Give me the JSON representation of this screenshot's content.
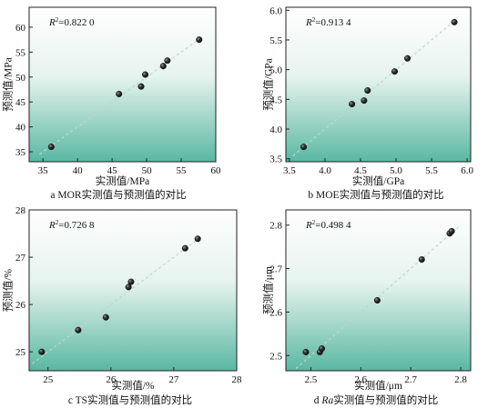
{
  "chart_data": [
    {
      "type": "scatter",
      "caption": "a MOR实测值与预测值的对比",
      "xlabel": "实测值/MPa",
      "ylabel": "预测值/MPa",
      "r2_label": "R",
      "r2_value": "=0.822 0",
      "xlim": [
        33,
        60
      ],
      "ylim": [
        33,
        64
      ],
      "xticks": [
        35,
        40,
        45,
        50,
        55,
        60
      ],
      "yticks": [
        35,
        40,
        45,
        50,
        55,
        60
      ],
      "points": [
        {
          "x": 36.2,
          "y": 36.0
        },
        {
          "x": 46.0,
          "y": 46.6
        },
        {
          "x": 49.2,
          "y": 48.1
        },
        {
          "x": 49.8,
          "y": 50.5
        },
        {
          "x": 52.4,
          "y": 52.2
        },
        {
          "x": 53.0,
          "y": 53.3
        },
        {
          "x": 57.6,
          "y": 57.5
        }
      ],
      "fit_line": [
        [
          34.5,
          34.5
        ],
        [
          57.5,
          57.5
        ]
      ],
      "grid": false
    },
    {
      "type": "scatter",
      "caption": "b MOE实测值与预测值的对比",
      "xlabel": "实测值/GPa",
      "ylabel": "预测值/GPa",
      "r2_label": "R",
      "r2_value": "=0.913 4",
      "xlim": [
        3.45,
        6.05
      ],
      "ylim": [
        3.45,
        6.05
      ],
      "xticks": [
        3.5,
        4.0,
        4.5,
        5.0,
        5.5,
        6.0
      ],
      "yticks": [
        3.5,
        4.0,
        4.5,
        5.0,
        5.5,
        6.0
      ],
      "xtick_labels": [
        "3.5",
        "4.0",
        "4.5",
        "5.0",
        "5.5",
        "6.0"
      ],
      "ytick_labels": [
        "3.5",
        "4.0",
        "4.5",
        "5.0",
        "5.5",
        "6.0"
      ],
      "points": [
        {
          "x": 3.7,
          "y": 3.7
        },
        {
          "x": 4.38,
          "y": 4.42
        },
        {
          "x": 4.55,
          "y": 4.48
        },
        {
          "x": 4.6,
          "y": 4.65
        },
        {
          "x": 4.98,
          "y": 4.97
        },
        {
          "x": 5.16,
          "y": 5.19
        },
        {
          "x": 5.82,
          "y": 5.8
        }
      ],
      "fit_line": [
        [
          3.55,
          3.55
        ],
        [
          5.8,
          5.8
        ]
      ],
      "grid": false
    },
    {
      "type": "scatter",
      "caption": "c TS实测值与预测值的对比",
      "xlabel": "实测值/%",
      "ylabel": "预测值/%",
      "r2_label": "R",
      "r2_value": "=0.726 8",
      "xlim": [
        24.7,
        28.0
      ],
      "ylim": [
        24.6,
        28.0
      ],
      "xticks": [
        25,
        26,
        27,
        28
      ],
      "yticks": [
        25,
        26,
        27,
        28
      ],
      "points": [
        {
          "x": 24.9,
          "y": 25.0
        },
        {
          "x": 25.48,
          "y": 25.46
        },
        {
          "x": 25.92,
          "y": 25.73
        },
        {
          "x": 26.28,
          "y": 26.37
        },
        {
          "x": 26.32,
          "y": 26.48
        },
        {
          "x": 27.18,
          "y": 27.19
        },
        {
          "x": 27.38,
          "y": 27.39
        }
      ],
      "fit_line": [
        [
          24.75,
          24.75
        ],
        [
          27.4,
          27.4
        ]
      ],
      "grid": false
    },
    {
      "type": "scatter",
      "caption_prefix": "d ",
      "caption_italic": "Ra",
      "caption_suffix": "实测值与预测值的对比",
      "xlabel": "实测值/μm",
      "ylabel": "预测值/μm",
      "r2_label": "R",
      "r2_value": "=0.498 4",
      "xlim": [
        2.45,
        2.82
      ],
      "ylim": [
        2.465,
        2.835
      ],
      "xticks": [
        2.5,
        2.6,
        2.7,
        2.8
      ],
      "yticks": [
        2.5,
        2.6,
        2.7,
        2.8
      ],
      "points": [
        {
          "x": 2.49,
          "y": 2.508
        },
        {
          "x": 2.518,
          "y": 2.508
        },
        {
          "x": 2.522,
          "y": 2.516
        },
        {
          "x": 2.633,
          "y": 2.627
        },
        {
          "x": 2.722,
          "y": 2.721
        },
        {
          "x": 2.778,
          "y": 2.781
        },
        {
          "x": 2.782,
          "y": 2.786
        }
      ],
      "fit_line": [
        [
          2.47,
          2.47
        ],
        [
          2.8,
          2.8
        ]
      ],
      "grid": false
    }
  ],
  "style": {
    "gradient_top": "#ffffff",
    "gradient_bottom": "#5ab8a2",
    "point_color": "#111111",
    "fit_line_color": "#b9d8ce",
    "axis_color": "#222222"
  }
}
